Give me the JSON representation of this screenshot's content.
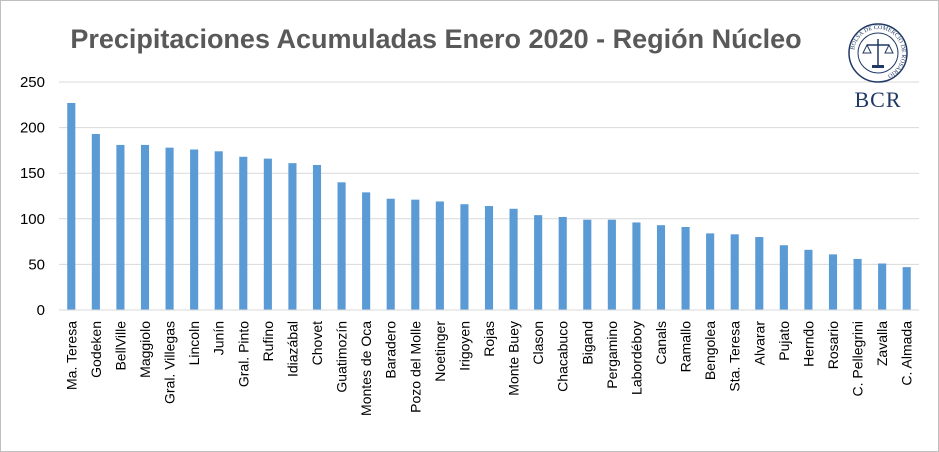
{
  "chart_data": {
    "type": "bar",
    "title": "Precipitaciones Acumuladas Enero 2020 -  Región Núcleo",
    "xlabel": "",
    "ylabel": "",
    "ylim": [
      0,
      250
    ],
    "yticks": [
      0,
      50,
      100,
      150,
      200,
      250
    ],
    "grid": true,
    "legend": "none",
    "bar_color": "#5b9bd5",
    "categories": [
      "Ma. Teresa",
      "Godeken",
      "BellVille",
      "Maggiolo",
      "Gral. Villegas",
      "Lincoln",
      "Junín",
      "Gral. Pinto",
      "Rufino",
      "Idiazábal",
      "Chovet",
      "Guatimozín",
      "Montes de Oca",
      "Baradero",
      "Pozo del Molle",
      "Noetinger",
      "Irigoyen",
      "Rojas",
      "Monte Buey",
      "Clason",
      "Chacabuco",
      "Bigand",
      "Pergamino",
      "Labordéboy",
      "Canals",
      "Ramallo",
      "Bengolea",
      "Sta. Teresa",
      "Alvarar",
      "Pujato",
      "Hernd́o",
      "Rosario",
      "C. Pellegrini",
      "Zavalla",
      "C. Almada"
    ],
    "values": [
      227,
      193,
      181,
      181,
      178,
      176,
      174,
      168,
      166,
      161,
      159,
      140,
      129,
      122,
      121,
      119,
      116,
      114,
      111,
      104,
      102,
      99,
      99,
      96,
      93,
      91,
      84,
      83,
      80,
      71,
      66,
      61,
      56,
      51,
      47
    ]
  },
  "logo": {
    "text": "BCR",
    "seal_text": "BOLSA DE COMERCIO DE ROSARIO"
  }
}
